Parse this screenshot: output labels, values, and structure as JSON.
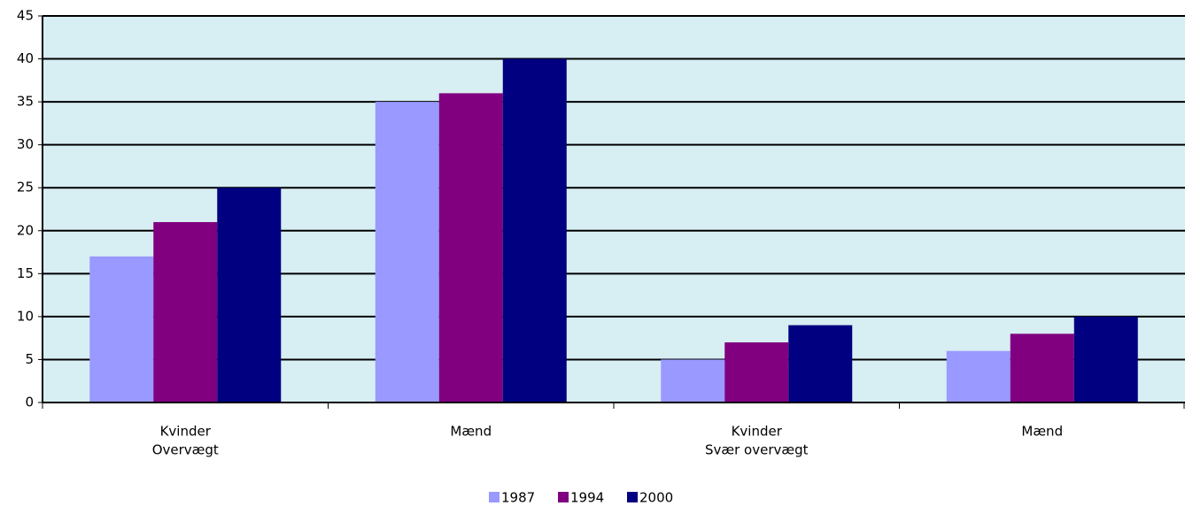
{
  "chart_data": {
    "type": "bar",
    "categories": [
      [
        "Kvinder",
        "Overvægt"
      ],
      [
        "Mænd"
      ],
      [
        "Kvinder",
        "Svær overvægt"
      ],
      [
        "Mænd"
      ]
    ],
    "series": [
      {
        "name": "1987",
        "color": "#9999ff",
        "values": [
          17,
          35,
          5,
          6
        ]
      },
      {
        "name": "1994",
        "color": "#800080",
        "values": [
          21,
          36,
          7,
          8
        ]
      },
      {
        "name": "2000",
        "color": "#000080",
        "values": [
          25,
          40,
          9,
          10
        ]
      }
    ],
    "ylim": [
      0,
      45
    ],
    "yticks": [
      0,
      5,
      10,
      15,
      20,
      25,
      30,
      35,
      40,
      45
    ],
    "grid": true,
    "background": "#d7eef3",
    "legend": "bottom"
  }
}
